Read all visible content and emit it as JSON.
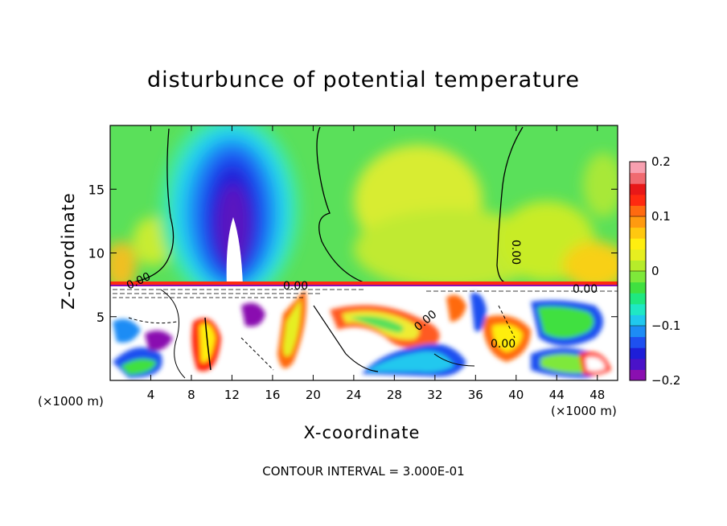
{
  "chart_data": {
    "type": "heatmap",
    "title": "disturbunce of potential temperature",
    "xlabel": "X-coordinate",
    "ylabel": "Z-coordinate",
    "x_unit": "(×1000 m)",
    "y_unit": "(×1000 m)",
    "x_ticks": [
      4,
      8,
      12,
      16,
      20,
      24,
      28,
      32,
      36,
      40,
      44,
      48
    ],
    "y_ticks": [
      5,
      10,
      15
    ],
    "xlim": [
      0,
      50
    ],
    "ylim": [
      0,
      20
    ],
    "contour_label": "0.00",
    "colorbar": {
      "ticks": [
        "0.2",
        "0.1",
        "0",
        "−0.1",
        "−0.2"
      ],
      "range": [
        -0.2,
        0.2
      ],
      "colors": [
        "#8a0fb0",
        "#4a12c8",
        "#1e1ed8",
        "#1e50f0",
        "#1d8cf5",
        "#20c8ee",
        "#1fe8c4",
        "#1fe880",
        "#40e040",
        "#7ee83a",
        "#b6ec2a",
        "#e6ee20",
        "#ffee10",
        "#ffc810",
        "#ff9a10",
        "#ff6a10",
        "#ff2a10",
        "#e81818",
        "#f06a70",
        "#f8a0b0"
      ]
    },
    "footer": "CONTOUR INTERVAL = 3.000E-01"
  }
}
